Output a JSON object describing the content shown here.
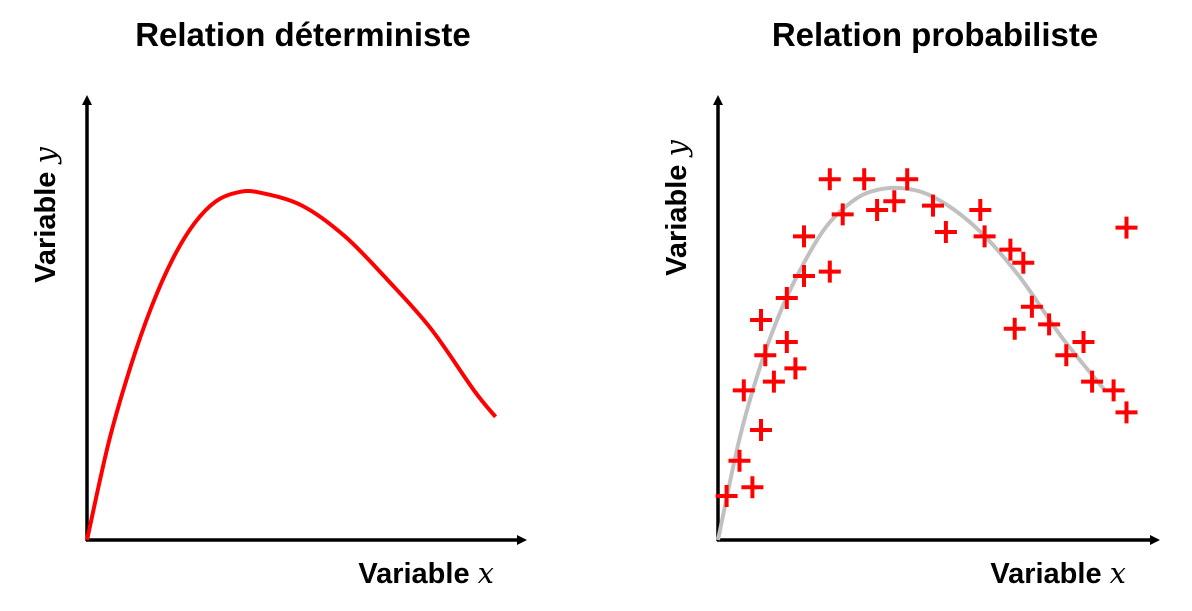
{
  "chart_data": [
    {
      "type": "line",
      "title": "Relation déterministe",
      "xlabel": {
        "text": "Variable",
        "var": "x"
      },
      "ylabel": {
        "text": "Variable",
        "var": "y"
      },
      "xlim": [
        0,
        10
      ],
      "ylim": [
        0,
        10
      ],
      "grid": false,
      "ticks": false,
      "line_color": "#ff0000",
      "x": [
        0,
        0.5,
        1,
        1.5,
        2,
        2.5,
        3,
        3.5,
        4,
        5,
        6,
        7,
        8,
        9,
        9.5
      ],
      "y": [
        0,
        2.2,
        3.9,
        5.3,
        6.4,
        7.2,
        7.7,
        7.9,
        7.9,
        7.6,
        6.9,
        5.9,
        4.8,
        3.4,
        2.8
      ]
    },
    {
      "type": "scatter",
      "title": "Relation probabiliste",
      "xlabel": {
        "text": "Variable",
        "var": "x"
      },
      "ylabel": {
        "text": "Variable",
        "var": "y"
      },
      "xlim": [
        0,
        10
      ],
      "ylim": [
        0,
        10
      ],
      "grid": false,
      "ticks": false,
      "marker": "plus",
      "marker_color": "#ff0000",
      "trend_color": "#c0c0c0",
      "points": [
        [
          0.2,
          1.0
        ],
        [
          0.8,
          1.2
        ],
        [
          0.5,
          1.8
        ],
        [
          1.0,
          2.5
        ],
        [
          0.6,
          3.4
        ],
        [
          1.3,
          3.6
        ],
        [
          1.8,
          3.9
        ],
        [
          1.1,
          4.2
        ],
        [
          1.6,
          4.5
        ],
        [
          1.0,
          5.0
        ],
        [
          1.6,
          5.5
        ],
        [
          2.0,
          6.0
        ],
        [
          2.6,
          6.1
        ],
        [
          2.0,
          6.9
        ],
        [
          2.9,
          7.4
        ],
        [
          2.6,
          8.2
        ],
        [
          3.4,
          8.2
        ],
        [
          3.7,
          7.5
        ],
        [
          4.1,
          7.7
        ],
        [
          4.4,
          8.2
        ],
        [
          5.0,
          7.6
        ],
        [
          5.3,
          7.0
        ],
        [
          6.1,
          7.5
        ],
        [
          6.2,
          6.9
        ],
        [
          6.8,
          6.6
        ],
        [
          7.1,
          6.3
        ],
        [
          7.3,
          5.3
        ],
        [
          6.9,
          4.8
        ],
        [
          7.7,
          4.9
        ],
        [
          8.1,
          4.2
        ],
        [
          8.5,
          4.5
        ],
        [
          8.7,
          3.6
        ],
        [
          9.2,
          3.4
        ],
        [
          9.5,
          2.9
        ],
        [
          9.5,
          7.1
        ]
      ],
      "trend": {
        "x": [
          0,
          0.5,
          1,
          1.5,
          2,
          2.5,
          3,
          3.5,
          4.2,
          5,
          6,
          7,
          8,
          9
        ],
        "y": [
          0,
          2.3,
          4.0,
          5.3,
          6.3,
          7.1,
          7.6,
          7.9,
          8.0,
          7.8,
          7.1,
          6.0,
          4.6,
          3.4
        ]
      }
    }
  ]
}
